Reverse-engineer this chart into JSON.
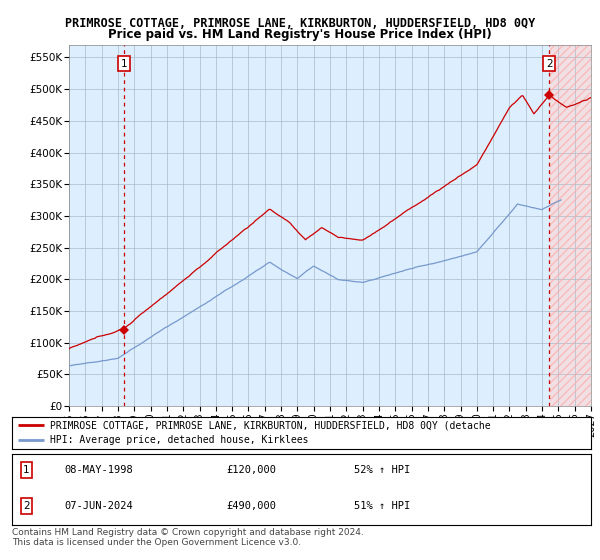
{
  "title": "PRIMROSE COTTAGE, PRIMROSE LANE, KIRKBURTON, HUDDERSFIELD, HD8 0QY",
  "subtitle": "Price paid vs. HM Land Registry's House Price Index (HPI)",
  "ylim": [
    0,
    570000
  ],
  "xlim_start": 1995.0,
  "xlim_end": 2027.0,
  "sale1_x": 1998.35,
  "sale1_y": 120000,
  "sale2_x": 2024.44,
  "sale2_y": 490000,
  "red_line_color": "#cc0000",
  "blue_line_color": "#7799cc",
  "background_color": "#ffffff",
  "plot_bg_color": "#ddeeff",
  "grid_color": "#aabbcc",
  "legend_line1": "PRIMROSE COTTAGE, PRIMROSE LANE, KIRKBURTON, HUDDERSFIELD, HD8 0QY (detache",
  "legend_line2": "HPI: Average price, detached house, Kirklees",
  "annotation1_date": "08-MAY-1998",
  "annotation1_price": "£120,000",
  "annotation1_hpi": "52% ↑ HPI",
  "annotation2_date": "07-JUN-2024",
  "annotation2_price": "£490,000",
  "annotation2_hpi": "51% ↑ HPI",
  "footer": "Contains HM Land Registry data © Crown copyright and database right 2024.\nThis data is licensed under the Open Government Licence v3.0.",
  "title_fontsize": 8.5,
  "subtitle_fontsize": 8.5,
  "hatch_start": 2024.5
}
